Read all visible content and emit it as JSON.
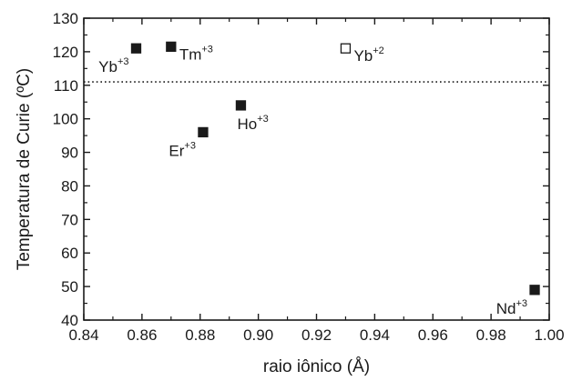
{
  "chart_data": {
    "type": "scatter",
    "title": "",
    "xlabel": "raio iônico (Å)",
    "ylabel": "Temperatura de Curie (ºC)",
    "xlim": [
      0.84,
      1.0
    ],
    "ylim": [
      40,
      130
    ],
    "xticks": [
      0.84,
      0.86,
      0.88,
      0.9,
      0.92,
      0.94,
      0.96,
      0.98,
      1.0
    ],
    "xtick_labels": [
      "0.84",
      "0.86",
      "0.88",
      "0.90",
      "0.92",
      "0.94",
      "0.96",
      "0.98",
      "1.00"
    ],
    "yticks": [
      40,
      50,
      60,
      70,
      80,
      90,
      100,
      110,
      120,
      130
    ],
    "ytick_labels": [
      "40",
      "50",
      "60",
      "70",
      "80",
      "90",
      "100",
      "110",
      "120",
      "130"
    ],
    "grid": false,
    "reference_line": {
      "y": 111,
      "style": "dotted"
    },
    "points": [
      {
        "x": 0.858,
        "y": 121,
        "label": "Yb",
        "sup": "+3",
        "filled": true,
        "label_pos": "left-below"
      },
      {
        "x": 0.87,
        "y": 121.5,
        "label": "Tm",
        "sup": "+3",
        "filled": true,
        "label_pos": "right"
      },
      {
        "x": 0.881,
        "y": 96,
        "label": "Er",
        "sup": "+3",
        "filled": true,
        "label_pos": "left-below"
      },
      {
        "x": 0.894,
        "y": 104,
        "label": "Ho",
        "sup": "+3",
        "filled": true,
        "label_pos": "below-right"
      },
      {
        "x": 0.93,
        "y": 121,
        "label": "Yb",
        "sup": "+2",
        "filled": false,
        "label_pos": "right"
      },
      {
        "x": 0.995,
        "y": 49,
        "label": "Nd",
        "sup": "+3",
        "filled": true,
        "label_pos": "left-below"
      }
    ]
  }
}
